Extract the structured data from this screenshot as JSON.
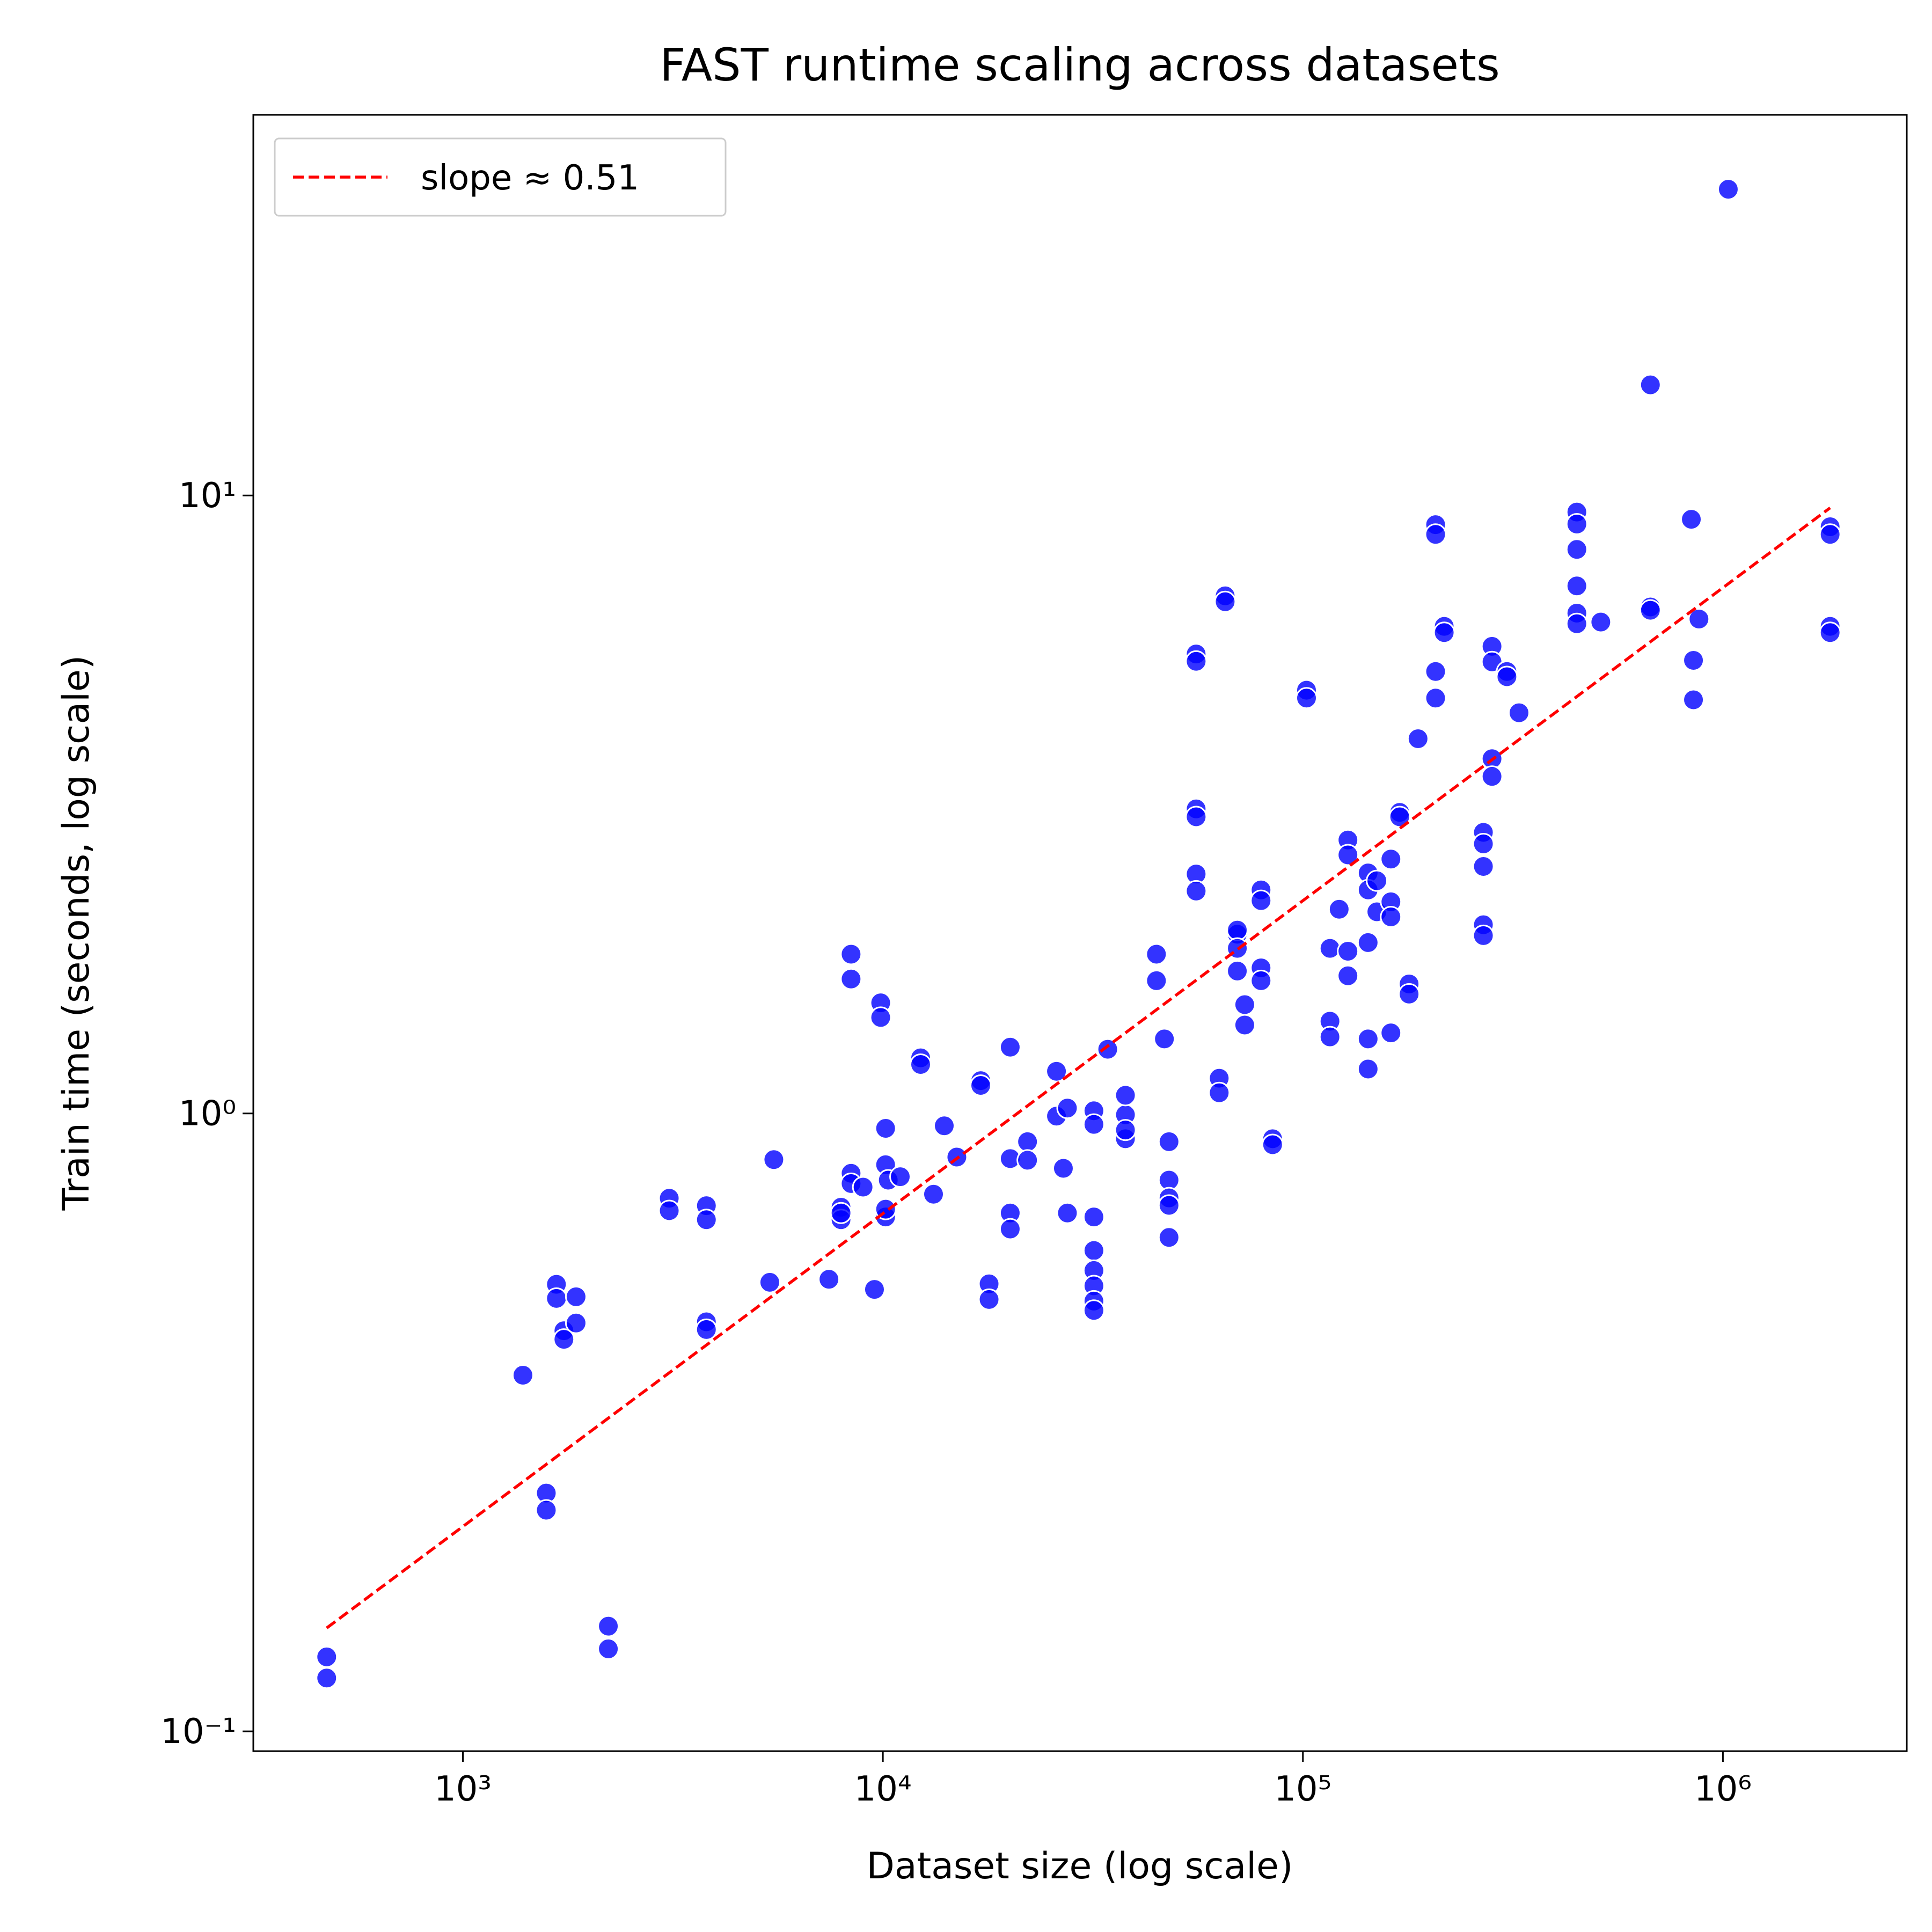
{
  "chart_data": {
    "type": "scatter",
    "title": "FAST runtime scaling across datasets",
    "xlabel": "Dataset size (log scale)",
    "ylabel": "Train time (seconds, log scale)",
    "xscale": "log",
    "yscale": "log",
    "xlim": [
      317,
      2740000
    ],
    "ylim": [
      0.0929,
      41.3
    ],
    "xticks": [
      {
        "value": 1000,
        "label": "10³"
      },
      {
        "value": 10000,
        "label": "10⁴"
      },
      {
        "value": 100000,
        "label": "10⁵"
      },
      {
        "value": 1000000,
        "label": "10⁶"
      }
    ],
    "yticks": [
      {
        "value": 0.1,
        "label": "10⁻¹"
      },
      {
        "value": 1,
        "label": "10⁰"
      },
      {
        "value": 10,
        "label": "10¹"
      }
    ],
    "legend": "upper left",
    "color": "#0000ff",
    "x": [
      474,
      474,
      1390,
      1580,
      1580,
      1670,
      1670,
      1740,
      1740,
      1860,
      1860,
      2220,
      2220,
      3100,
      3100,
      3800,
      3800,
      3800,
      3800,
      5380,
      5500,
      7440,
      7950,
      7950,
      7950,
      8400,
      8400,
      8400,
      8400,
      8970,
      9550,
      9880,
      9880,
      10150,
      10150,
      10150,
      10150,
      10300,
      11000,
      12300,
      12300,
      13200,
      14000,
      15000,
      17100,
      17100,
      17900,
      17900,
      20100,
      20100,
      20100,
      20100,
      22100,
      22100,
      25900,
      25900,
      26900,
      27500,
      27500,
      31800,
      31800,
      31800,
      31800,
      31800,
      31800,
      31800,
      31800,
      34300,
      37800,
      37800,
      37800,
      37800,
      44800,
      44800,
      46800,
      48000,
      48000,
      48000,
      48000,
      48000,
      55700,
      55700,
      55700,
      55700,
      55700,
      55700,
      63200,
      63200,
      65300,
      65300,
      69800,
      69800,
      69800,
      69800,
      72700,
      72700,
      79500,
      79500,
      79500,
      79500,
      84700,
      84700,
      102000,
      102000,
      116000,
      116000,
      116000,
      122000,
      128000,
      128000,
      128000,
      128000,
      143000,
      143000,
      143000,
      143000,
      143000,
      150000,
      150000,
      162000,
      162000,
      162000,
      162000,
      170000,
      170000,
      179000,
      179000,
      188000,
      207000,
      207000,
      207000,
      207000,
      217000,
      217000,
      269000,
      269000,
      269000,
      269000,
      269000,
      282000,
      282000,
      282000,
      282000,
      306000,
      306000,
      327000,
      449000,
      449000,
      449000,
      449000,
      449000,
      449000,
      512000,
      672000,
      672000,
      672000,
      841000,
      851000,
      851000,
      877000,
      1030000,
      1800000,
      1800000,
      1800000,
      1800000
    ],
    "y": [
      0.132,
      0.122,
      0.377,
      0.243,
      0.228,
      0.529,
      0.502,
      0.445,
      0.431,
      0.505,
      0.458,
      0.148,
      0.136,
      0.729,
      0.696,
      0.709,
      0.673,
      0.46,
      0.447,
      0.533,
      0.842,
      0.539,
      0.705,
      0.673,
      0.69,
      1.81,
      1.65,
      0.8,
      0.77,
      0.76,
      0.519,
      1.51,
      1.43,
      0.946,
      0.826,
      0.68,
      0.7,
      0.78,
      0.79,
      1.23,
      1.2,
      0.74,
      0.955,
      0.85,
      1.13,
      1.11,
      0.53,
      0.5,
      1.28,
      0.845,
      0.69,
      0.65,
      0.9,
      0.84,
      1.17,
      0.99,
      0.815,
      1.02,
      0.69,
      0.68,
      0.6,
      0.557,
      0.526,
      0.497,
      0.48,
      1.01,
      0.96,
      1.27,
      0.995,
      0.91,
      0.94,
      1.07,
      1.81,
      1.64,
      1.32,
      0.9,
      0.78,
      0.73,
      0.71,
      0.63,
      5.54,
      5.39,
      3.11,
      3.02,
      2.44,
      2.29,
      1.14,
      1.08,
      6.88,
      6.73,
      1.95,
      1.7,
      1.98,
      1.85,
      1.5,
      1.39,
      2.3,
      2.21,
      1.72,
      1.64,
      0.91,
      0.89,
      4.84,
      4.7,
      1.85,
      1.41,
      1.33,
      2.14,
      2.77,
      2.62,
      1.83,
      1.67,
      2.45,
      2.3,
      1.89,
      1.32,
      1.18,
      2.38,
      2.12,
      2.58,
      2.2,
      2.08,
      1.35,
      3.07,
      3.02,
      1.62,
      1.56,
      4.04,
      8.97,
      8.65,
      5.19,
      4.7,
      6.14,
      6.0,
      2.85,
      2.73,
      2.51,
      2.02,
      1.94,
      5.7,
      5.38,
      3.75,
      3.51,
      5.19,
      5.09,
      4.45,
      9.4,
      8.99,
      8.18,
      7.14,
      6.45,
      6.2,
      6.24,
      15.1,
      6.6,
      6.52,
      9.15,
      5.41,
      4.67,
      6.31,
      31.3,
      8.9,
      8.65,
      6.14,
      6.0
    ],
    "lines": [
      {
        "name": "slope ≈ 0.51",
        "color": "#ff0000",
        "x": [
          474,
          1800000
        ],
        "y": [
          0.147,
          9.55
        ]
      }
    ]
  }
}
